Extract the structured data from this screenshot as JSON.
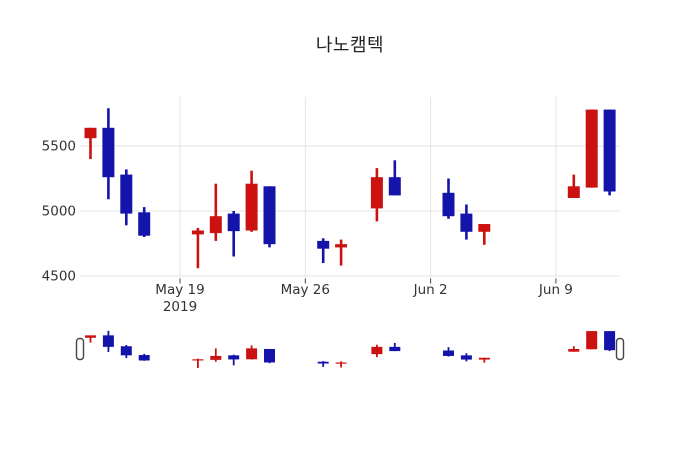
{
  "window": {
    "title": "나노캠텍"
  },
  "chart_data": {
    "type": "candlestick",
    "title": "나노캠텍",
    "xlabel": "",
    "ylabel": "",
    "legend": "none",
    "grid": "on",
    "colors": {
      "increasing": "#cc1111",
      "decreasing": "#1414aa",
      "gridline": "#e6e6e6",
      "tick_text": "#333333",
      "handle_stroke": "#444444",
      "background": "#ffffff"
    },
    "y_axis": {
      "ticks": [
        4500,
        5000,
        5500
      ],
      "range": [
        4485,
        5880
      ]
    },
    "x_axis": {
      "ticks": [
        {
          "label": "May 19",
          "sublabel": "2019",
          "day": 0
        },
        {
          "label": "May 26",
          "sublabel": "",
          "day": 7
        },
        {
          "label": "Jun 2",
          "sublabel": "",
          "day": 14
        },
        {
          "label": "Jun 9",
          "sublabel": "",
          "day": 21
        }
      ]
    },
    "candles": [
      {
        "date": "2019-05-14",
        "day": -5,
        "open": 5560,
        "high": 5640,
        "low": 5400,
        "close": 5640
      },
      {
        "date": "2019-05-15",
        "day": -4,
        "open": 5640,
        "high": 5790,
        "low": 5090,
        "close": 5260
      },
      {
        "date": "2019-05-16",
        "day": -3,
        "open": 5280,
        "high": 5320,
        "low": 4890,
        "close": 4980
      },
      {
        "date": "2019-05-17",
        "day": -2,
        "open": 4990,
        "high": 5030,
        "low": 4800,
        "close": 4810
      },
      {
        "date": "2019-05-20",
        "day": 1,
        "open": 4820,
        "high": 4870,
        "low": 4560,
        "close": 4850
      },
      {
        "date": "2019-05-21",
        "day": 2,
        "open": 4830,
        "high": 5210,
        "low": 4770,
        "close": 4960
      },
      {
        "date": "2019-05-22",
        "day": 3,
        "open": 4980,
        "high": 5000,
        "low": 4650,
        "close": 4845
      },
      {
        "date": "2019-05-23",
        "day": 4,
        "open": 4850,
        "high": 5310,
        "low": 4840,
        "close": 5210
      },
      {
        "date": "2019-05-24",
        "day": 5,
        "open": 5190,
        "high": 5190,
        "low": 4720,
        "close": 4745
      },
      {
        "date": "2019-05-27",
        "day": 8,
        "open": 4770,
        "high": 4790,
        "low": 4600,
        "close": 4710
      },
      {
        "date": "2019-05-28",
        "day": 9,
        "open": 4720,
        "high": 4780,
        "low": 4580,
        "close": 4745
      },
      {
        "date": "2019-05-30",
        "day": 11,
        "open": 5020,
        "high": 5330,
        "low": 4920,
        "close": 5260
      },
      {
        "date": "2019-05-31",
        "day": 12,
        "open": 5260,
        "high": 5390,
        "low": 5120,
        "close": 5120
      },
      {
        "date": "2019-06-03",
        "day": 15,
        "open": 5140,
        "high": 5250,
        "low": 4940,
        "close": 4960
      },
      {
        "date": "2019-06-04",
        "day": 16,
        "open": 4980,
        "high": 5050,
        "low": 4780,
        "close": 4840
      },
      {
        "date": "2019-06-05",
        "day": 17,
        "open": 4840,
        "high": 4900,
        "low": 4740,
        "close": 4900
      },
      {
        "date": "2019-06-10",
        "day": 22,
        "open": 5100,
        "high": 5280,
        "low": 5100,
        "close": 5190
      },
      {
        "date": "2019-06-11",
        "day": 23,
        "open": 5180,
        "high": 5780,
        "low": 5180,
        "close": 5780
      },
      {
        "date": "2019-06-12",
        "day": 24,
        "open": 5780,
        "high": 5780,
        "low": 5120,
        "close": 5150
      }
    ],
    "rangeslider": {
      "visible": true,
      "handle_count": 2
    }
  }
}
